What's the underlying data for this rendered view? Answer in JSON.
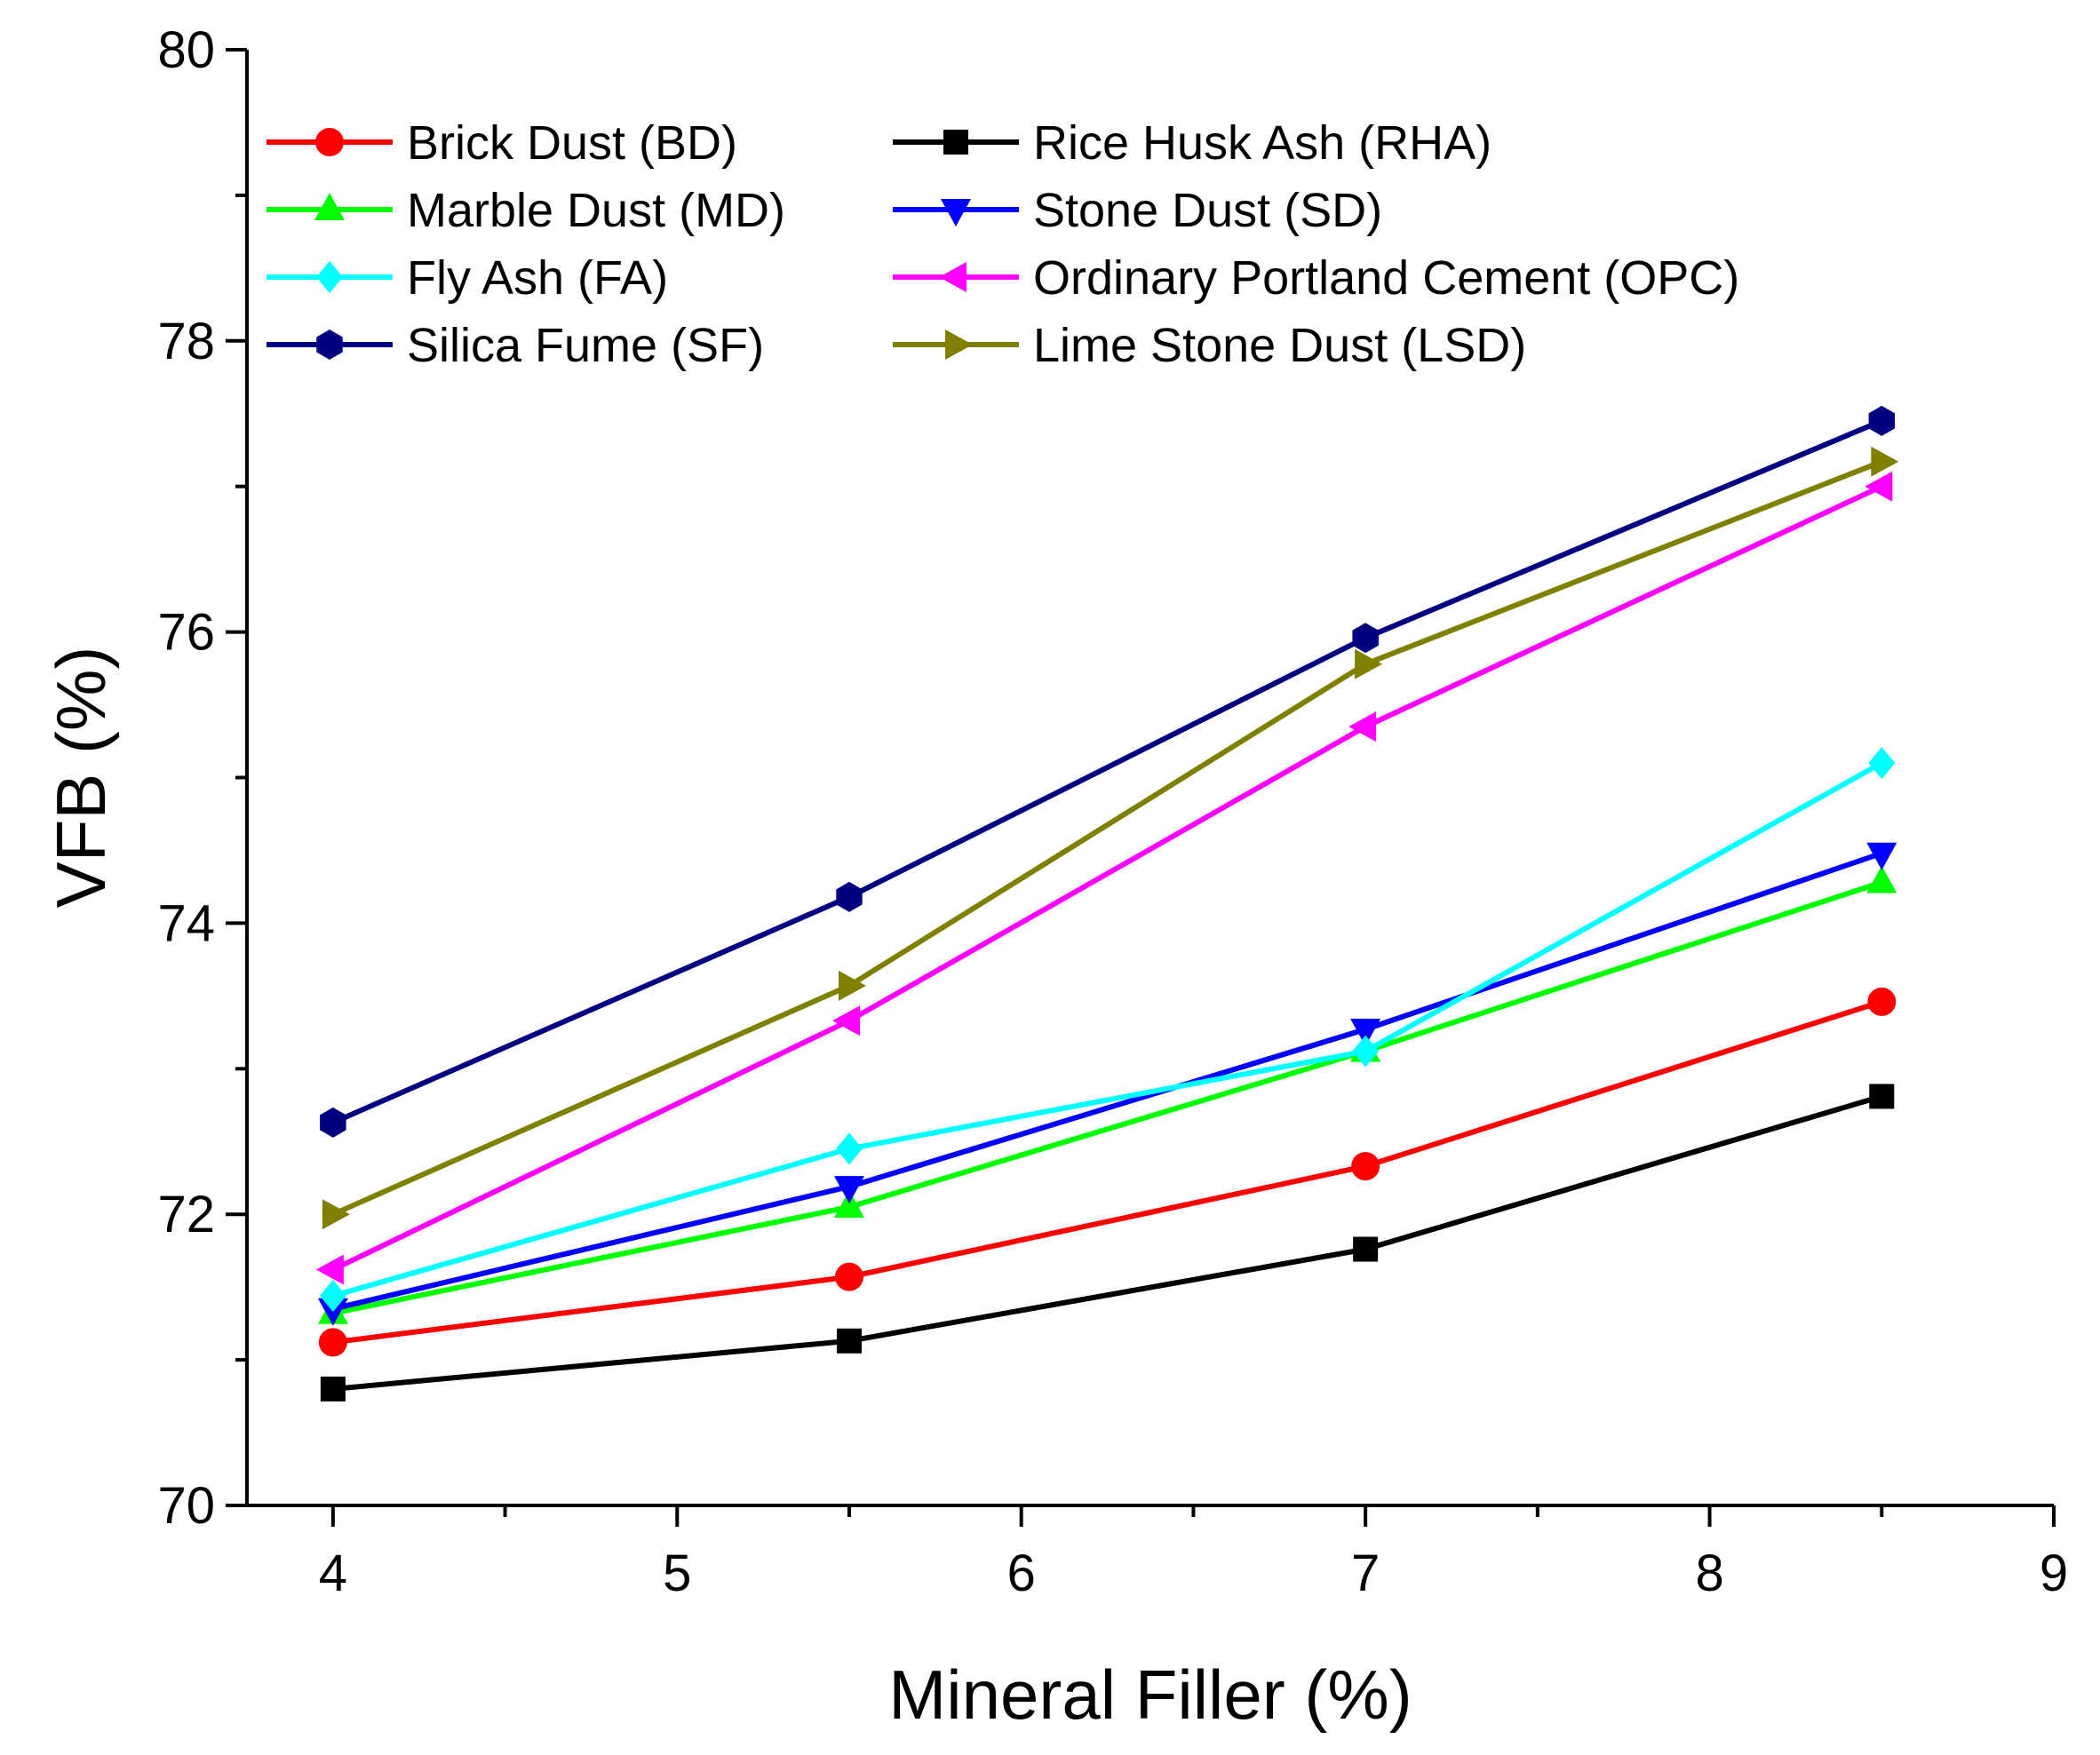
{
  "chart_data": {
    "type": "line",
    "title": "",
    "xlabel": "Mineral Filler (%)",
    "ylabel": "VFB (%)",
    "xlim": [
      3.75,
      9
    ],
    "ylim": [
      70,
      80
    ],
    "xticks": [
      4,
      5,
      6,
      7,
      8,
      9
    ],
    "yticks": [
      70,
      72,
      74,
      76,
      78,
      80
    ],
    "xtick_labels": [
      "4",
      "5",
      "6",
      "7",
      "8",
      "9"
    ],
    "ytick_labels": [
      "70",
      "72",
      "74",
      "76",
      "78",
      "80"
    ],
    "grid": false,
    "legend_position": "top-left",
    "x": [
      4,
      5.5,
      7,
      8.5
    ],
    "series": [
      {
        "name": "Brick Dust (BD)",
        "color": "#ff0000",
        "marker": "circle",
        "values": [
          71.12,
          71.57,
          72.33,
          73.46
        ]
      },
      {
        "name": "Rice Husk Ash (RHA)",
        "color": "#000000",
        "marker": "square",
        "values": [
          70.8,
          71.13,
          71.76,
          72.81
        ]
      },
      {
        "name": "Marble Dust (MD)",
        "color": "#00ff00",
        "marker": "triangle-up",
        "values": [
          71.32,
          72.05,
          73.12,
          74.28
        ]
      },
      {
        "name": "Stone Dust (SD)",
        "color": "#0000ff",
        "marker": "triangle-down",
        "values": [
          71.35,
          72.19,
          73.27,
          74.48
        ]
      },
      {
        "name": "Fly Ash (FA)",
        "color": "#00ffff",
        "marker": "diamond",
        "values": [
          71.44,
          72.45,
          73.12,
          75.1
        ]
      },
      {
        "name": "Ordinary Portland Cement (OPC)",
        "color": "#ff00ff",
        "marker": "triangle-left",
        "values": [
          71.62,
          73.33,
          75.35,
          77.0
        ]
      },
      {
        "name": "Silica Fume (SF)",
        "color": "#000080",
        "marker": "hexagon",
        "values": [
          72.63,
          74.18,
          75.96,
          77.45
        ]
      },
      {
        "name": "Lime Stone Dust (LSD)",
        "color": "#808000",
        "marker": "triangle-right",
        "values": [
          72.0,
          73.57,
          75.78,
          77.17
        ]
      }
    ]
  }
}
